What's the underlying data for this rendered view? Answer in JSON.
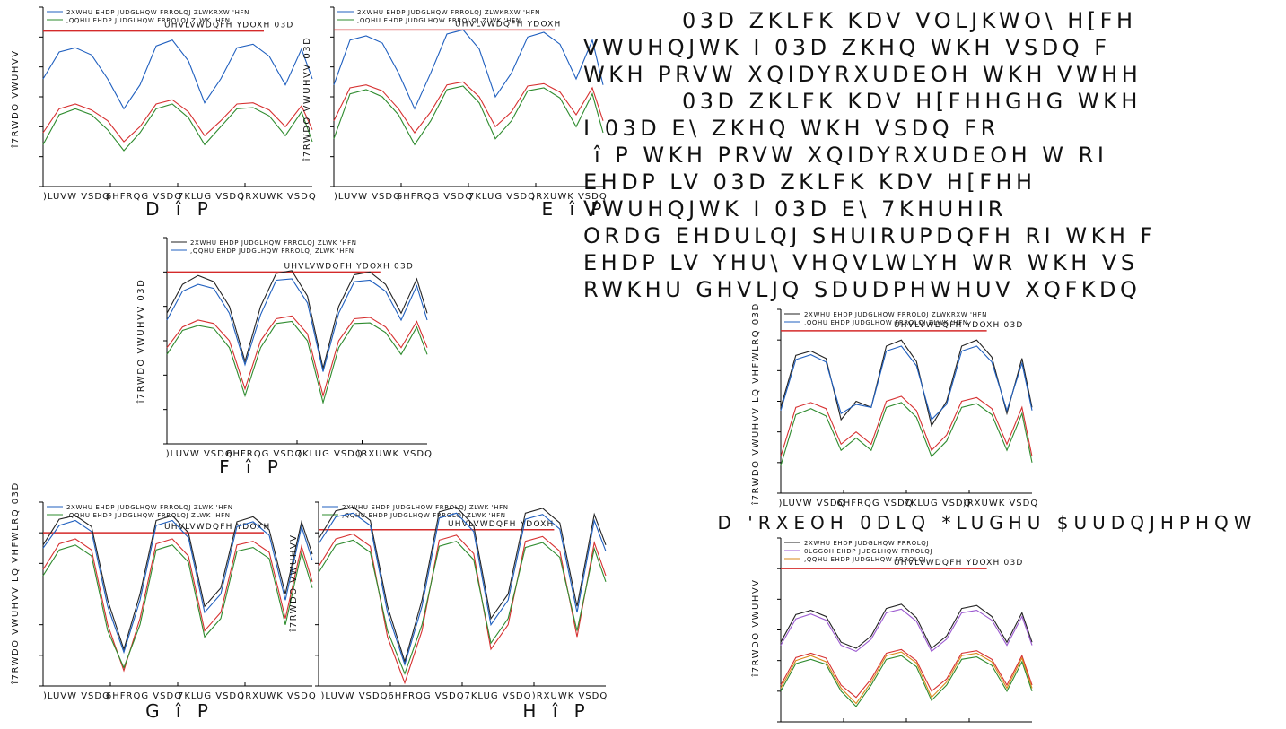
{
  "paragraph_lines": [
    "03D    ZKLFK  KDV  VOLJKWO\\  H[FH",
    "VWUHQJWK  I      03D  ZKHQ  WKH  VSDQ  F",
    "WKH  PRVW  XQIDYRXUDEOH  WKH  VWHH",
    "    03D    ZKLFK  KDV  H[FHHGHG  WKH",
    "I      03D  E\\          ZKHQ  WKH  VSDQ  FR",
    " î  P   WKH  PRVW  XQIDYRXUDEOH  W  RI",
    "EHDP  LV        03D   ZKLFK  KDV  H[FHH",
    "VWUHQJWK  I      03D  E\\              7KHUHIR",
    "ORDG  EHDULQJ  SHUIRUPDQFH  RI  WKH  F",
    "EHDP  LV  YHU\\  VHQVLWLYH  WR  WKH  VS",
    "RWKHU  GHVLJQ  SDUDPHWHUV  XQFKDQ"
  ],
  "colors": {
    "outer": "#222222",
    "inner": "#1f5fbf",
    "middle": "#2e8b2e",
    "middle_purple": "#9b59d0",
    "inner_orange": "#d98a1a",
    "red": "#d63030",
    "resistance": "#d42a2a"
  },
  "chart_data": [
    {
      "id": "a",
      "type": "line",
      "ylabel": "î7RWDO VWUHVV",
      "xlabels": [
        ")LUVW VSDQ",
        "6HFRQG VSDQ",
        "7KLUG VSDQ",
        ")RXUWK VSDQ"
      ],
      "legend": [
        {
          "label": "2XWHU EHDP JUDGLHQW FRROLQJ",
          "sub": "  ZLWKRXW 'HFN",
          "color": "inner"
        },
        {
          "label": ",QQHU EHDP JUDGLHQW FRROLQJ",
          "sub": "  ZLWK 'HFN",
          "color": "middle"
        }
      ],
      "resistance_label": "UHVLVWDQFH YDOXH  03D",
      "caption": "D  î  P",
      "ylim": [
        0,
        300
      ],
      "resistance_value": 260,
      "x": [
        0,
        0.06,
        0.12,
        0.18,
        0.24,
        0.3,
        0.36,
        0.42,
        0.48,
        0.54,
        0.6,
        0.66,
        0.72,
        0.78,
        0.84,
        0.9,
        0.96,
        1.0
      ],
      "series": [
        {
          "color": "inner",
          "values": [
            180,
            225,
            232,
            220,
            180,
            130,
            170,
            235,
            245,
            210,
            140,
            180,
            232,
            238,
            218,
            170,
            230,
            180
          ]
        },
        {
          "color": "red",
          "values": [
            90,
            130,
            138,
            128,
            110,
            75,
            100,
            138,
            145,
            125,
            85,
            110,
            138,
            140,
            128,
            100,
            135,
            95
          ]
        },
        {
          "color": "middle",
          "values": [
            70,
            120,
            130,
            120,
            95,
            60,
            90,
            130,
            138,
            115,
            70,
            100,
            130,
            132,
            118,
            85,
            125,
            75
          ]
        }
      ]
    },
    {
      "id": "b",
      "type": "line",
      "ylabel": "î7RWDO VWUHVV  03D",
      "xlabels": [
        ")LUVW VSDQ",
        "6HFRQG VSDQ",
        "7KLUG VSDQ",
        ")RXUWK VSDQ"
      ],
      "legend": [
        {
          "label": "2XWHU EHDP JUDGLHQW FRROLQJ",
          "sub": "  ZLWKRXW 'HFN",
          "color": "inner"
        },
        {
          "label": ",QQHU EHDP JUDGLHQW FRROLQJ",
          "sub": "  ZLWK 'HFN",
          "color": "middle"
        }
      ],
      "resistance_label": "UHVLVWDQFH YDOXH",
      "caption": "E  î  P",
      "ylim": [
        0,
        300
      ],
      "resistance_value": 262,
      "x": [
        0,
        0.06,
        0.12,
        0.18,
        0.24,
        0.3,
        0.36,
        0.42,
        0.48,
        0.54,
        0.6,
        0.66,
        0.72,
        0.78,
        0.84,
        0.9,
        0.96,
        1.0
      ],
      "series": [
        {
          "color": "inner",
          "values": [
            170,
            245,
            252,
            240,
            190,
            130,
            190,
            255,
            262,
            230,
            150,
            190,
            250,
            258,
            238,
            180,
            245,
            170
          ]
        },
        {
          "color": "red",
          "values": [
            110,
            165,
            170,
            160,
            130,
            90,
            125,
            170,
            175,
            150,
            100,
            125,
            168,
            172,
            158,
            120,
            165,
            110
          ]
        },
        {
          "color": "middle",
          "values": [
            80,
            155,
            162,
            150,
            120,
            70,
            110,
            162,
            168,
            140,
            80,
            110,
            160,
            165,
            148,
            100,
            155,
            90
          ]
        }
      ]
    },
    {
      "id": "c",
      "type": "line",
      "ylabel": "î7RWDO VWUHVV  03D",
      "xlabels": [
        ")LUVW VSDQ",
        "6HFRQG VSDQ",
        "7KLUG VSDQ",
        ")RXUWK VSDQ"
      ],
      "legend": [
        {
          "label": "2XWHU EHDP JUDGLHQW FRROLQJ",
          "sub": "  ZLWK 'HFN",
          "color": "outer"
        },
        {
          "label": ",QQHU EHDP JUDGLHQW FRROLQJ",
          "sub": "  ZLWK 'HFN",
          "color": "inner"
        }
      ],
      "resistance_label": "UHVLVWDQFH YDOXH     03D",
      "caption": "F  î  P",
      "ylim": [
        0,
        300
      ],
      "resistance_value": 250,
      "x": [
        0,
        0.06,
        0.12,
        0.18,
        0.24,
        0.3,
        0.36,
        0.42,
        0.48,
        0.54,
        0.6,
        0.66,
        0.72,
        0.78,
        0.84,
        0.9,
        0.96,
        1.0
      ],
      "series": [
        {
          "color": "outer",
          "values": [
            190,
            232,
            245,
            236,
            200,
            120,
            200,
            248,
            252,
            215,
            110,
            200,
            246,
            250,
            232,
            190,
            240,
            190
          ]
        },
        {
          "color": "inner",
          "values": [
            180,
            222,
            232,
            226,
            190,
            115,
            188,
            238,
            240,
            205,
            105,
            190,
            236,
            238,
            222,
            180,
            230,
            180
          ]
        },
        {
          "color": "red",
          "values": [
            140,
            170,
            180,
            175,
            150,
            80,
            150,
            182,
            186,
            160,
            70,
            150,
            182,
            184,
            170,
            140,
            178,
            140
          ]
        },
        {
          "color": "middle",
          "values": [
            130,
            165,
            172,
            168,
            140,
            70,
            140,
            175,
            178,
            150,
            60,
            140,
            175,
            176,
            162,
            130,
            170,
            130
          ]
        }
      ]
    },
    {
      "id": "d",
      "type": "line",
      "ylabel": "î7RWDO VWUHVV LQ VHFWLRQ 03D",
      "xlabels": [
        ")LUVW VSDQ",
        "6HFRQG VSDQ",
        "7KLUG VSDQ",
        ")RXUWK VSDQ"
      ],
      "legend": [
        {
          "label": "2XWHU EHDP JUDGLHQW FRROLQJ",
          "sub": "  ZLWK 'HFN",
          "color": "inner"
        },
        {
          "label": ",QQHU EHDP JUDGLHQW FRROLQJ",
          "sub": "  ZLWK 'HFN",
          "color": "middle"
        }
      ],
      "resistance_label": "UHVLVWDQFH YDOXH",
      "caption": "G  î  P",
      "ylim": [
        0,
        300
      ],
      "resistance_value": 250,
      "x": [
        0,
        0.06,
        0.12,
        0.18,
        0.24,
        0.3,
        0.36,
        0.42,
        0.48,
        0.54,
        0.6,
        0.66,
        0.72,
        0.78,
        0.84,
        0.9,
        0.96,
        1.0
      ],
      "series": [
        {
          "color": "outer",
          "values": [
            230,
            272,
            278,
            260,
            140,
            60,
            150,
            270,
            278,
            250,
            130,
            160,
            268,
            276,
            255,
            150,
            268,
            215
          ]
        },
        {
          "color": "inner",
          "values": [
            225,
            262,
            270,
            252,
            130,
            55,
            140,
            262,
            270,
            242,
            120,
            150,
            260,
            268,
            246,
            140,
            260,
            205
          ]
        },
        {
          "color": "red",
          "values": [
            190,
            232,
            240,
            222,
            100,
            25,
            110,
            232,
            240,
            212,
            90,
            120,
            230,
            236,
            218,
            110,
            228,
            170
          ]
        },
        {
          "color": "middle",
          "values": [
            180,
            222,
            230,
            212,
            90,
            30,
            100,
            222,
            230,
            202,
            80,
            110,
            220,
            226,
            208,
            100,
            218,
            160
          ]
        }
      ]
    },
    {
      "id": "e",
      "type": "line",
      "ylabel": "î7RWDO VWUHVV",
      "xlabels": [
        ")LUVW VSDQ",
        "6HFRQG VSDQ",
        "7KLUG VSDQ",
        ")RXUWK VSDQ"
      ],
      "legend": [
        {
          "label": "2XWHU EHDP JUDGLHQW FRROLQJ",
          "sub": "  ZLWK 'HFN",
          "color": "inner"
        },
        {
          "label": ",QQHU EHDP JUDGLHQW FRROLQJ",
          "sub": "  ZLWK 'HFN",
          "color": "middle"
        }
      ],
      "resistance_label": "UHVLVWDQFH YDOXH",
      "caption": "H  î  P",
      "ylim": [
        0,
        300
      ],
      "resistance_value": 255,
      "x": [
        0,
        0.06,
        0.12,
        0.18,
        0.24,
        0.3,
        0.36,
        0.42,
        0.48,
        0.54,
        0.6,
        0.66,
        0.72,
        0.78,
        0.84,
        0.9,
        0.96,
        1.0
      ],
      "series": [
        {
          "color": "outer",
          "values": [
            240,
            286,
            292,
            270,
            130,
            40,
            140,
            284,
            292,
            262,
            110,
            150,
            282,
            290,
            266,
            130,
            280,
            230
          ]
        },
        {
          "color": "inner",
          "values": [
            232,
            276,
            282,
            262,
            120,
            35,
            130,
            274,
            282,
            252,
            100,
            140,
            272,
            280,
            256,
            120,
            270,
            220
          ]
        },
        {
          "color": "red",
          "values": [
            195,
            240,
            248,
            228,
            80,
            5,
            90,
            238,
            246,
            216,
            60,
            100,
            236,
            244,
            220,
            80,
            234,
            180
          ]
        },
        {
          "color": "middle",
          "values": [
            185,
            230,
            238,
            218,
            90,
            20,
            100,
            228,
            236,
            206,
            70,
            110,
            226,
            234,
            210,
            90,
            224,
            170
          ]
        }
      ]
    },
    {
      "id": "f",
      "type": "line",
      "ylabel": "î7RWDO VWUHVV LQ VHFWLRQ 03D",
      "xlabels": [
        ")LUVW VSDQ",
        "6HFRQG VSDQ",
        "7KLUG VSDQ",
        ")RXUWK VSDQ"
      ],
      "legend": [
        {
          "label": "2XWHU EHDP JUDGLHQW FRROLQJ",
          "sub": "  ZLWKRXW 'HFN",
          "color": "outer"
        },
        {
          "label": ",QQHU EHDP JUDGLHQW FRROLQJ",
          "sub": "  ZLWK 'HFN",
          "color": "inner"
        }
      ],
      "resistance_label": "UHVLVWDQFH YDOXH     03D",
      "caption": "D  'RXEOH 0DLQ *LUGHU $UUDQJHPHQW",
      "ylim": [
        0,
        300
      ],
      "resistance_value": 265,
      "x": [
        0,
        0.06,
        0.12,
        0.18,
        0.24,
        0.3,
        0.36,
        0.42,
        0.48,
        0.54,
        0.6,
        0.66,
        0.72,
        0.78,
        0.84,
        0.9,
        0.96,
        1.0
      ],
      "series": [
        {
          "color": "outer",
          "values": [
            140,
            225,
            232,
            220,
            120,
            150,
            140,
            240,
            250,
            215,
            110,
            150,
            240,
            250,
            222,
            130,
            220,
            140
          ]
        },
        {
          "color": "inner",
          "values": [
            135,
            218,
            226,
            214,
            130,
            145,
            140,
            232,
            240,
            208,
            120,
            145,
            232,
            240,
            214,
            135,
            212,
            135
          ]
        },
        {
          "color": "red",
          "values": [
            60,
            140,
            148,
            138,
            80,
            100,
            80,
            150,
            158,
            135,
            70,
            95,
            150,
            156,
            138,
            80,
            140,
            60
          ]
        },
        {
          "color": "middle",
          "values": [
            45,
            128,
            138,
            126,
            70,
            90,
            70,
            140,
            148,
            124,
            60,
            85,
            140,
            146,
            128,
            70,
            130,
            50
          ]
        }
      ]
    },
    {
      "id": "g",
      "type": "line",
      "ylabel": "î7RWDO VWUHVV",
      "xlabels": [],
      "legend": [
        {
          "label": "2XWHU EHDP JUDGLHQW FRROLQJ",
          "sub": "",
          "color": "outer"
        },
        {
          "label": "0LGGOH EHDP JUDGLHQW FRROLQJ",
          "sub": "",
          "color": "middle_purple"
        },
        {
          "label": ",QQHU EHDP JUDGLHQW FRROLQJ",
          "sub": "",
          "color": "inner_orange"
        }
      ],
      "resistance_label": "UHVLVWDQFH YDOXH     03D",
      "caption": "",
      "ylim": [
        0,
        300
      ],
      "resistance_value": 250,
      "x": [
        0,
        0.06,
        0.12,
        0.18,
        0.24,
        0.3,
        0.36,
        0.42,
        0.48,
        0.54,
        0.6,
        0.66,
        0.72,
        0.78,
        0.84,
        0.9,
        0.96,
        1.0
      ],
      "series": [
        {
          "color": "outer",
          "values": [
            130,
            175,
            182,
            172,
            130,
            120,
            140,
            185,
            192,
            170,
            120,
            140,
            185,
            190,
            172,
            130,
            178,
            130
          ]
        },
        {
          "color": "middle_purple",
          "values": [
            125,
            168,
            176,
            166,
            125,
            115,
            135,
            178,
            184,
            164,
            115,
            135,
            178,
            182,
            166,
            125,
            172,
            125
          ]
        },
        {
          "color": "red",
          "values": [
            60,
            105,
            112,
            104,
            60,
            40,
            70,
            112,
            118,
            100,
            50,
            70,
            112,
            116,
            102,
            60,
            108,
            60
          ]
        },
        {
          "color": "inner_orange",
          "values": [
            55,
            100,
            108,
            98,
            55,
            30,
            65,
            108,
            114,
            96,
            40,
            65,
            108,
            112,
            98,
            55,
            104,
            55
          ]
        },
        {
          "color": "middle",
          "values": [
            50,
            95,
            102,
            94,
            50,
            25,
            60,
            102,
            108,
            90,
            35,
            60,
            102,
            106,
            92,
            50,
            98,
            50
          ]
        }
      ]
    }
  ]
}
